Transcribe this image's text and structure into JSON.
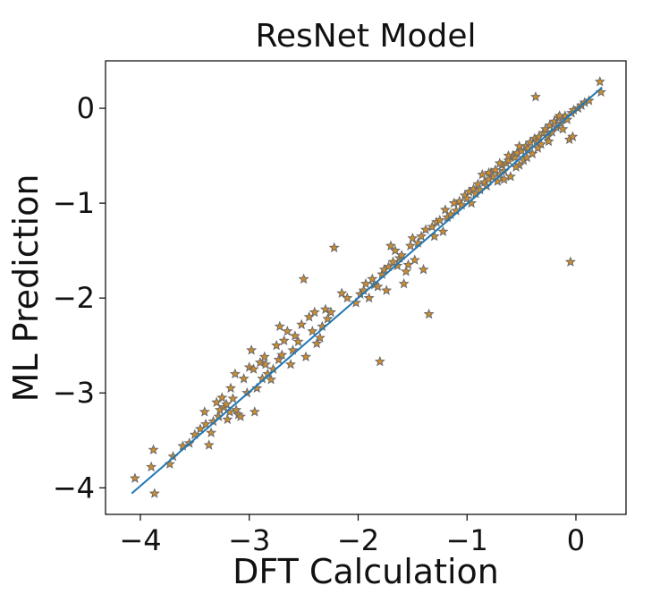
{
  "chart_data": {
    "type": "scatter",
    "title": "ResNet Model",
    "xlabel": "DFT Calculation",
    "ylabel": "ML Prediction",
    "xlim": [
      -4.32,
      0.46
    ],
    "ylim": [
      -4.28,
      0.5
    ],
    "xticks": [
      -4,
      -3,
      -2,
      -1,
      0
    ],
    "yticks": [
      -4,
      -3,
      -2,
      -1,
      0
    ],
    "xtick_labels": [
      "−4",
      "−3",
      "−2",
      "−1",
      "0"
    ],
    "ytick_labels": [
      "−4",
      "−3",
      "−2",
      "−1",
      "0"
    ],
    "grid": false,
    "legend": "none",
    "marker": "star",
    "marker_fill": "#d08c2a",
    "marker_edge": "#6b6b6b",
    "line_color": "#1f77b4",
    "fit_line": {
      "x": [
        -4.08,
        0.24
      ],
      "y": [
        -4.06,
        0.22
      ]
    },
    "points": [
      [
        -4.05,
        -3.9
      ],
      [
        -3.88,
        -3.6
      ],
      [
        -3.9,
        -3.78
      ],
      [
        -3.87,
        -4.06
      ],
      [
        -3.73,
        -3.75
      ],
      [
        -3.7,
        -3.67
      ],
      [
        -3.61,
        -3.56
      ],
      [
        -3.55,
        -3.53
      ],
      [
        -3.5,
        -3.44
      ],
      [
        -3.45,
        -3.38
      ],
      [
        -3.41,
        -3.2
      ],
      [
        -3.4,
        -3.33
      ],
      [
        -3.37,
        -3.55
      ],
      [
        -3.35,
        -3.42
      ],
      [
        -3.33,
        -3.3
      ],
      [
        -3.3,
        -3.1
      ],
      [
        -3.28,
        -3.25
      ],
      [
        -3.27,
        -3.18
      ],
      [
        -3.25,
        -3.05
      ],
      [
        -3.23,
        -3.15
      ],
      [
        -3.21,
        -3.12
      ],
      [
        -3.2,
        -3.28
      ],
      [
        -3.18,
        -3.2
      ],
      [
        -3.17,
        -2.95
      ],
      [
        -3.15,
        -3.06
      ],
      [
        -3.13,
        -2.8
      ],
      [
        -3.12,
        -3.18
      ],
      [
        -3.1,
        -3.23
      ],
      [
        -3.08,
        -3.25
      ],
      [
        -3.05,
        -2.85
      ],
      [
        -3.02,
        -3.0
      ],
      [
        -3.0,
        -2.73
      ],
      [
        -2.98,
        -2.55
      ],
      [
        -2.96,
        -2.75
      ],
      [
        -2.95,
        -3.2
      ],
      [
        -2.93,
        -2.95
      ],
      [
        -2.9,
        -2.68
      ],
      [
        -2.88,
        -2.85
      ],
      [
        -2.86,
        -2.62
      ],
      [
        -2.85,
        -2.7
      ],
      [
        -2.83,
        -2.8
      ],
      [
        -2.8,
        -2.86
      ],
      [
        -2.78,
        -2.75
      ],
      [
        -2.75,
        -2.5
      ],
      [
        -2.73,
        -2.65
      ],
      [
        -2.72,
        -2.3
      ],
      [
        -2.7,
        -2.6
      ],
      [
        -2.68,
        -2.45
      ],
      [
        -2.65,
        -2.35
      ],
      [
        -2.62,
        -2.7
      ],
      [
        -2.6,
        -2.55
      ],
      [
        -2.58,
        -2.4
      ],
      [
        -2.55,
        -2.46
      ],
      [
        -2.52,
        -2.28
      ],
      [
        -2.5,
        -1.8
      ],
      [
        -2.48,
        -2.62
      ],
      [
        -2.45,
        -2.2
      ],
      [
        -2.42,
        -2.35
      ],
      [
        -2.4,
        -2.15
      ],
      [
        -2.38,
        -2.48
      ],
      [
        -2.35,
        -2.42
      ],
      [
        -2.33,
        -2.3
      ],
      [
        -2.3,
        -2.12
      ],
      [
        -2.28,
        -2.22
      ],
      [
        -2.25,
        -2.15
      ],
      [
        -2.22,
        -1.47
      ],
      [
        -2.15,
        -1.95
      ],
      [
        -2.1,
        -2.0
      ],
      [
        -2.02,
        -2.05
      ],
      [
        -1.98,
        -1.96
      ],
      [
        -1.95,
        -1.92
      ],
      [
        -1.93,
        -1.85
      ],
      [
        -1.9,
        -2.0
      ],
      [
        -1.87,
        -1.8
      ],
      [
        -1.85,
        -1.86
      ],
      [
        -1.82,
        -1.88
      ],
      [
        -1.8,
        -2.67
      ],
      [
        -1.78,
        -1.75
      ],
      [
        -1.76,
        -1.7
      ],
      [
        -1.74,
        -1.92
      ],
      [
        -1.72,
        -1.67
      ],
      [
        -1.7,
        -1.45
      ],
      [
        -1.68,
        -1.62
      ],
      [
        -1.66,
        -1.5
      ],
      [
        -1.64,
        -1.66
      ],
      [
        -1.62,
        -1.58
      ],
      [
        -1.6,
        -1.55
      ],
      [
        -1.58,
        -1.85
      ],
      [
        -1.56,
        -1.72
      ],
      [
        -1.54,
        -1.65
      ],
      [
        -1.52,
        -1.45
      ],
      [
        -1.5,
        -1.37
      ],
      [
        -1.48,
        -1.6
      ],
      [
        -1.45,
        -1.42
      ],
      [
        -1.42,
        -1.35
      ],
      [
        -1.4,
        -1.7
      ],
      [
        -1.38,
        -1.28
      ],
      [
        -1.35,
        -2.17
      ],
      [
        -1.32,
        -1.25
      ],
      [
        -1.3,
        -1.35
      ],
      [
        -1.28,
        -1.2
      ],
      [
        -1.25,
        -1.18
      ],
      [
        -1.22,
        -1.3
      ],
      [
        -1.2,
        -1.07
      ],
      [
        -1.18,
        -1.15
      ],
      [
        -1.15,
        -1.12
      ],
      [
        -1.12,
        -1.0
      ],
      [
        -1.1,
        -1.08
      ],
      [
        -1.07,
        -0.98
      ],
      [
        -1.05,
        -1.02
      ],
      [
        -1.02,
        -0.92
      ],
      [
        -1.0,
        -0.95
      ],
      [
        -0.98,
        -0.88
      ],
      [
        -0.96,
        -1.0
      ],
      [
        -0.94,
        -0.85
      ],
      [
        -0.92,
        -0.9
      ],
      [
        -0.9,
        -0.8
      ],
      [
        -0.88,
        -0.86
      ],
      [
        -0.86,
        -0.7
      ],
      [
        -0.84,
        -0.78
      ],
      [
        -0.82,
        -0.82
      ],
      [
        -0.8,
        -0.75
      ],
      [
        -0.78,
        -0.68
      ],
      [
        -0.76,
        -0.72
      ],
      [
        -0.74,
        -0.65
      ],
      [
        -0.72,
        -0.77
      ],
      [
        -0.7,
        -0.7
      ],
      [
        -0.68,
        -0.6
      ],
      [
        -0.66,
        -0.66
      ],
      [
        -0.64,
        -0.58
      ],
      [
        -0.62,
        -0.55
      ],
      [
        -0.6,
        -0.72
      ],
      [
        -0.58,
        -0.5
      ],
      [
        -0.56,
        -0.52
      ],
      [
        -0.54,
        -0.47
      ],
      [
        -0.52,
        -0.6
      ],
      [
        -0.5,
        -0.45
      ],
      [
        -0.48,
        -0.55
      ],
      [
        -0.46,
        -0.4
      ],
      [
        -0.44,
        -0.42
      ],
      [
        -0.42,
        -0.36
      ],
      [
        -0.4,
        -0.48
      ],
      [
        -0.38,
        -0.32
      ],
      [
        -0.37,
        0.12
      ],
      [
        -0.36,
        -0.34
      ],
      [
        -0.34,
        -0.3
      ],
      [
        -0.32,
        -0.38
      ],
      [
        -0.3,
        -0.26
      ],
      [
        -0.28,
        -0.22
      ],
      [
        -0.26,
        -0.3
      ],
      [
        -0.24,
        -0.18
      ],
      [
        -0.22,
        -0.25
      ],
      [
        -0.2,
        -0.14
      ],
      [
        -0.18,
        -0.2
      ],
      [
        -0.16,
        -0.1
      ],
      [
        -0.14,
        -0.16
      ],
      [
        -0.12,
        -0.22
      ],
      [
        -0.1,
        -0.08
      ],
      [
        -0.08,
        -0.12
      ],
      [
        -0.06,
        -0.33
      ],
      [
        -0.05,
        -1.62
      ],
      [
        -0.04,
        -0.05
      ],
      [
        -0.03,
        -0.3
      ],
      [
        -0.02,
        -0.02
      ],
      [
        0.02,
        0.0
      ],
      [
        0.05,
        0.03
      ],
      [
        0.08,
        0.06
      ],
      [
        0.12,
        0.08
      ],
      [
        0.22,
        0.28
      ],
      [
        0.23,
        0.17
      ],
      [
        -0.62,
        -0.5
      ],
      [
        -0.55,
        -0.62
      ],
      [
        -0.7,
        -0.58
      ],
      [
        -0.45,
        -0.52
      ],
      [
        -0.35,
        -0.42
      ],
      [
        -0.25,
        -0.35
      ],
      [
        -0.15,
        -0.08
      ],
      [
        -0.52,
        -0.4
      ],
      [
        -0.66,
        -0.75
      ],
      [
        -0.8,
        -0.68
      ]
    ]
  }
}
